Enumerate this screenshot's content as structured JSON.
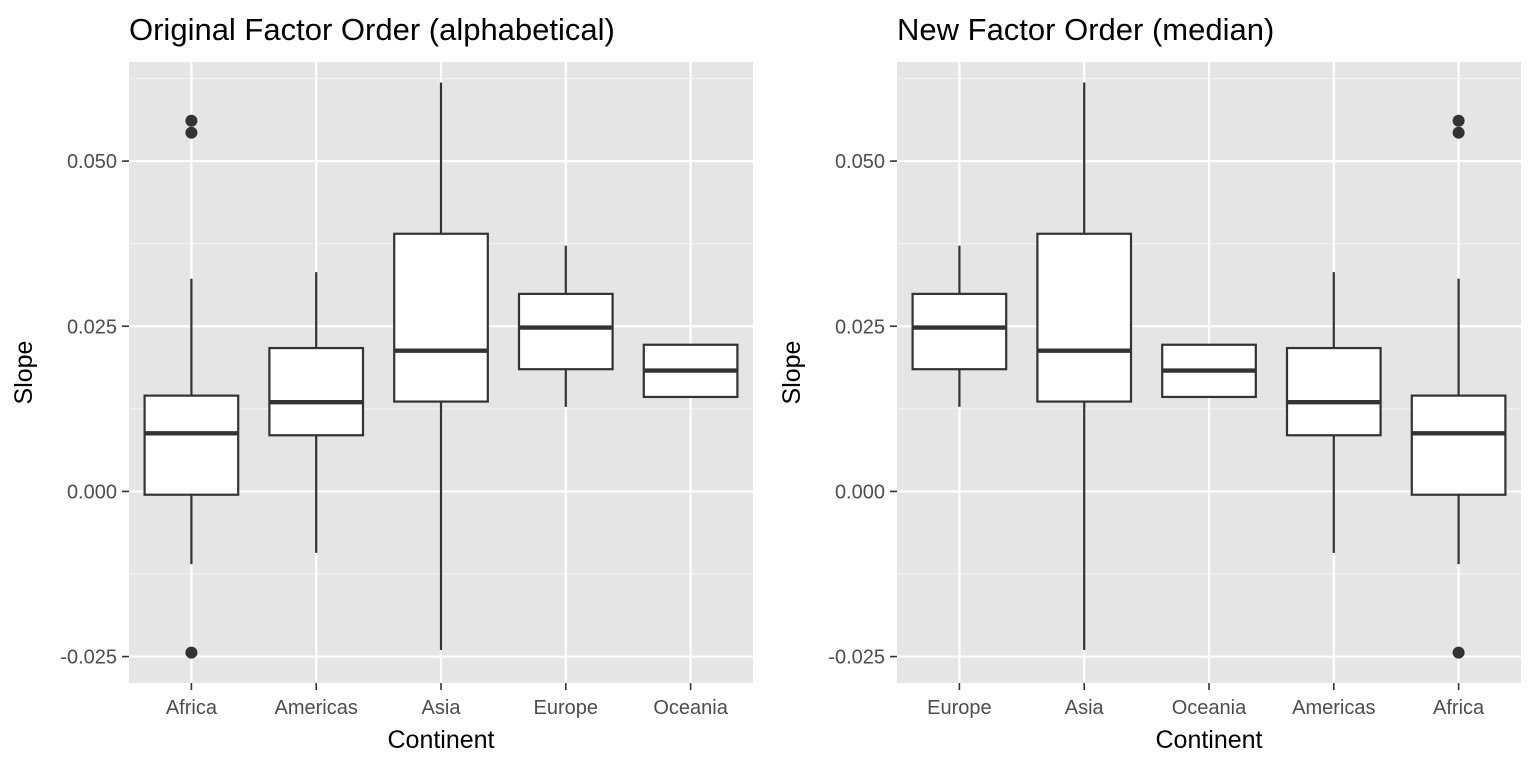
{
  "chart_data": [
    {
      "type": "box",
      "title": "Original Factor Order (alphabetical)",
      "xlabel": "Continent",
      "ylabel": "Slope",
      "ylim": [
        -0.029,
        0.065
      ],
      "yticks": [
        -0.025,
        0.0,
        0.025,
        0.05
      ],
      "ytick_labels": [
        "-0.025",
        "0.000",
        "0.025",
        "0.050"
      ],
      "grid": true,
      "categories": [
        "Africa",
        "Americas",
        "Asia",
        "Europe",
        "Oceania"
      ],
      "boxes": [
        {
          "category": "Africa",
          "whisker_low": -0.011,
          "q1": -0.0005,
          "median": 0.0088,
          "q3": 0.0145,
          "whisker_high": 0.0322,
          "outliers": [
            0.0561,
            0.0543,
            -0.0244
          ]
        },
        {
          "category": "Americas",
          "whisker_low": -0.0093,
          "q1": 0.0085,
          "median": 0.0135,
          "q3": 0.0217,
          "whisker_high": 0.0332,
          "outliers": []
        },
        {
          "category": "Asia",
          "whisker_low": -0.024,
          "q1": 0.0136,
          "median": 0.0213,
          "q3": 0.039,
          "whisker_high": 0.0619,
          "outliers": []
        },
        {
          "category": "Europe",
          "whisker_low": 0.0128,
          "q1": 0.0185,
          "median": 0.0248,
          "q3": 0.0299,
          "whisker_high": 0.0372,
          "outliers": []
        },
        {
          "category": "Oceania",
          "whisker_low": 0.0143,
          "q1": 0.0143,
          "median": 0.0183,
          "q3": 0.0222,
          "whisker_high": 0.0222,
          "outliers": []
        }
      ]
    },
    {
      "type": "box",
      "title": "New Factor Order (median)",
      "xlabel": "Continent",
      "ylabel": "Slope",
      "ylim": [
        -0.029,
        0.065
      ],
      "yticks": [
        -0.025,
        0.0,
        0.025,
        0.05
      ],
      "ytick_labels": [
        "-0.025",
        "0.000",
        "0.025",
        "0.050"
      ],
      "grid": true,
      "categories": [
        "Europe",
        "Asia",
        "Oceania",
        "Americas",
        "Africa"
      ],
      "boxes": [
        {
          "category": "Europe",
          "whisker_low": 0.0128,
          "q1": 0.0185,
          "median": 0.0248,
          "q3": 0.0299,
          "whisker_high": 0.0372,
          "outliers": []
        },
        {
          "category": "Asia",
          "whisker_low": -0.024,
          "q1": 0.0136,
          "median": 0.0213,
          "q3": 0.039,
          "whisker_high": 0.0619,
          "outliers": []
        },
        {
          "category": "Oceania",
          "whisker_low": 0.0143,
          "q1": 0.0143,
          "median": 0.0183,
          "q3": 0.0222,
          "whisker_high": 0.0222,
          "outliers": []
        },
        {
          "category": "Americas",
          "whisker_low": -0.0093,
          "q1": 0.0085,
          "median": 0.0135,
          "q3": 0.0217,
          "whisker_high": 0.0332,
          "outliers": []
        },
        {
          "category": "Africa",
          "whisker_low": -0.011,
          "q1": -0.0005,
          "median": 0.0088,
          "q3": 0.0145,
          "whisker_high": 0.0322,
          "outliers": [
            0.0561,
            0.0543,
            -0.0244
          ]
        }
      ]
    }
  ]
}
